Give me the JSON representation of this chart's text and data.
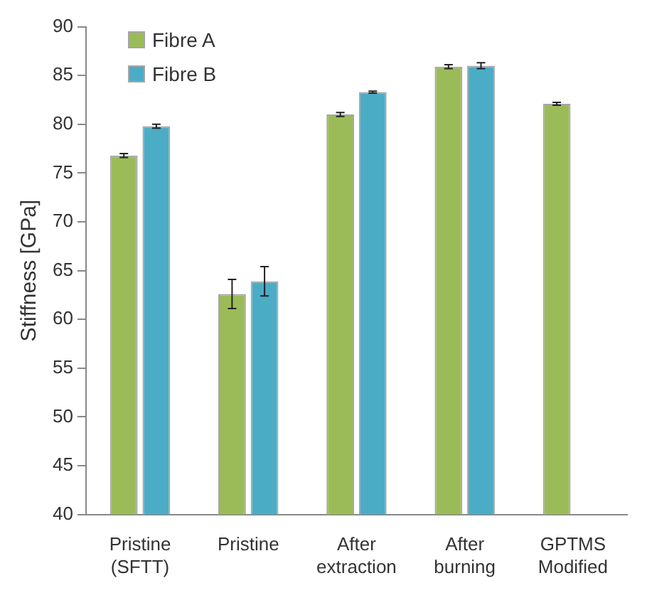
{
  "chart_data": {
    "type": "bar",
    "ylabel": "Stiffness [GPa]",
    "categories": [
      "Pristine (SFTT)",
      "Pristine",
      "After extraction",
      "After burning",
      "GPTMS Modified"
    ],
    "series": [
      {
        "name": "Fibre A",
        "color": "#9bbb59",
        "values": [
          76.8,
          62.6,
          81.0,
          85.9,
          82.1
        ],
        "errors": [
          0.2,
          1.5,
          0.2,
          0.2,
          0.15
        ]
      },
      {
        "name": "Fibre B",
        "color": "#4bacc6",
        "values": [
          79.8,
          63.9,
          83.3,
          86.0,
          null
        ],
        "errors": [
          0.2,
          1.5,
          0.1,
          0.3,
          null
        ]
      }
    ],
    "ylim": [
      40,
      90
    ],
    "yticks": [
      40,
      45,
      50,
      55,
      60,
      65,
      70,
      75,
      80,
      85,
      90
    ],
    "grid": false,
    "legend": "top left"
  }
}
